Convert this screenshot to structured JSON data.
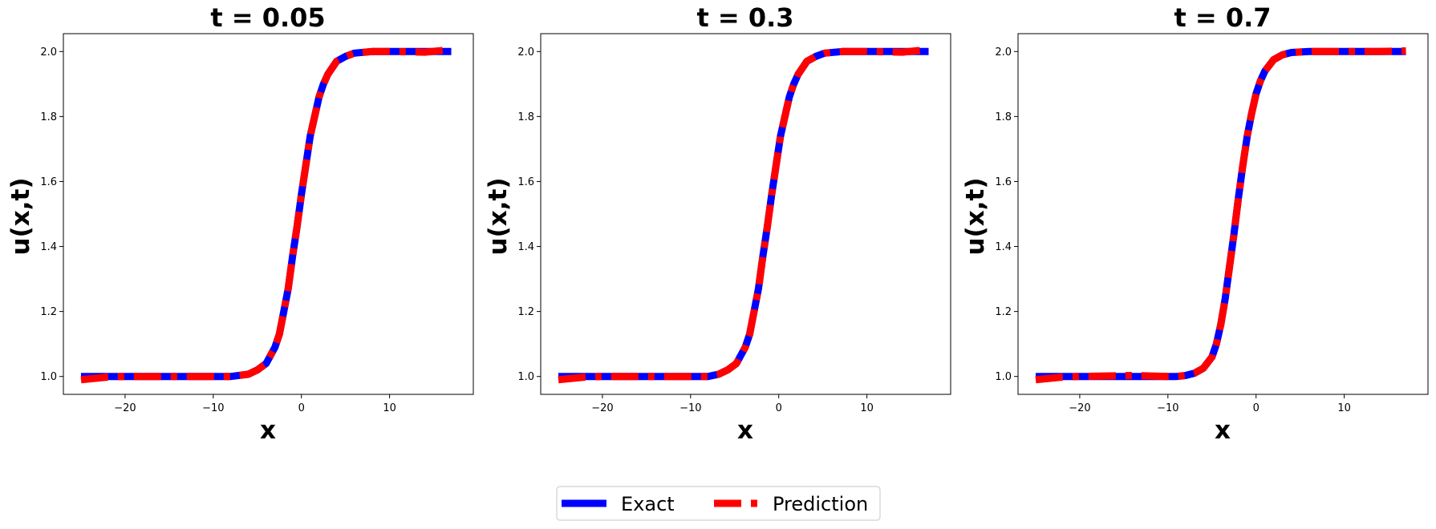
{
  "chart_data": [
    {
      "type": "line",
      "title": "t = 0.05",
      "xlabel": "x",
      "ylabel": "u(x,t)",
      "xlim": [
        -27,
        19.5
      ],
      "ylim": [
        0.945,
        2.055
      ],
      "xticks": [
        -20,
        -10,
        0,
        10
      ],
      "xtick_labels": [
        "−20",
        "−10",
        "0",
        "10"
      ],
      "yticks": [
        1.0,
        1.2,
        1.4,
        1.6,
        1.8,
        2.0
      ],
      "ytick_labels": [
        "1.0",
        "1.2",
        "1.4",
        "1.6",
        "1.8",
        "2.0"
      ],
      "grid": false,
      "series": [
        {
          "name": "Exact",
          "color": "#0000ff",
          "style": "solid",
          "x": [
            -25,
            -20,
            -10,
            -8,
            -6,
            -5,
            -4,
            -3,
            -2.5,
            -2,
            -1.5,
            -1,
            -0.5,
            0,
            0.5,
            1,
            1.5,
            2,
            2.5,
            3,
            4,
            5,
            6,
            8,
            10,
            17
          ],
          "y": [
            1.0,
            1.0,
            1.0,
            1.0,
            1.007,
            1.02,
            1.04,
            1.09,
            1.13,
            1.2,
            1.27,
            1.37,
            1.46,
            1.56,
            1.65,
            1.74,
            1.8,
            1.86,
            1.9,
            1.93,
            1.97,
            1.985,
            1.995,
            2.0,
            2.0,
            2.0
          ]
        },
        {
          "name": "Prediction",
          "color": "#ff0000",
          "style": "dashed",
          "x": [
            -25,
            -22,
            -20,
            -10,
            -8,
            -6,
            -5,
            -4,
            -3,
            -2.5,
            -2,
            -1.5,
            -1,
            -0.5,
            0,
            0.5,
            1,
            1.5,
            2,
            2.5,
            3,
            4,
            5,
            6,
            8,
            10,
            14,
            17
          ],
          "y": [
            0.99,
            0.998,
            1.0,
            1.0,
            1.0,
            1.007,
            1.02,
            1.04,
            1.09,
            1.13,
            1.2,
            1.27,
            1.37,
            1.46,
            1.56,
            1.65,
            1.74,
            1.8,
            1.86,
            1.9,
            1.93,
            1.97,
            1.985,
            1.995,
            2.0,
            2.0,
            1.998,
            2.006
          ]
        }
      ]
    },
    {
      "type": "line",
      "title": "t = 0.3",
      "xlabel": "x",
      "ylabel": "u(x,t)",
      "xlim": [
        -27,
        19.5
      ],
      "ylim": [
        0.945,
        2.055
      ],
      "xticks": [
        -20,
        -10,
        0,
        10
      ],
      "xtick_labels": [
        "−20",
        "−10",
        "0",
        "10"
      ],
      "yticks": [
        1.0,
        1.2,
        1.4,
        1.6,
        1.8,
        2.0
      ],
      "ytick_labels": [
        "1.0",
        "1.2",
        "1.4",
        "1.6",
        "1.8",
        "2.0"
      ],
      "grid": false,
      "series": [
        {
          "name": "Exact",
          "color": "#0000ff",
          "style": "solid",
          "x": [
            -25,
            -20,
            -10,
            -8,
            -6.8,
            -5.8,
            -4.8,
            -3.8,
            -3.3,
            -2.8,
            -2.3,
            -1.8,
            -1.3,
            -0.8,
            -0.3,
            0.2,
            0.7,
            1.2,
            1.7,
            2.2,
            3.2,
            4.2,
            5.2,
            7.2,
            10,
            17
          ],
          "y": [
            1.0,
            1.0,
            1.0,
            1.0,
            1.007,
            1.02,
            1.04,
            1.09,
            1.13,
            1.2,
            1.27,
            1.37,
            1.46,
            1.56,
            1.65,
            1.74,
            1.8,
            1.86,
            1.9,
            1.93,
            1.97,
            1.985,
            1.995,
            2.0,
            2.0,
            2.0
          ]
        },
        {
          "name": "Prediction",
          "color": "#ff0000",
          "style": "dashed",
          "x": [
            -25,
            -22,
            -20,
            -10,
            -8,
            -6.8,
            -5.8,
            -4.8,
            -3.8,
            -3.3,
            -2.8,
            -2.3,
            -1.8,
            -1.3,
            -0.8,
            -0.3,
            0.2,
            0.7,
            1.2,
            1.7,
            2.2,
            3.2,
            4.2,
            5.2,
            7.2,
            10,
            14,
            17
          ],
          "y": [
            0.99,
            0.998,
            1.0,
            1.0,
            1.0,
            1.007,
            1.02,
            1.04,
            1.09,
            1.13,
            1.2,
            1.27,
            1.37,
            1.46,
            1.56,
            1.65,
            1.74,
            1.8,
            1.86,
            1.9,
            1.93,
            1.97,
            1.985,
            1.995,
            2.0,
            2.0,
            1.998,
            2.006
          ]
        }
      ]
    },
    {
      "type": "line",
      "title": "t = 0.7",
      "xlabel": "x",
      "ylabel": "u(x,t)",
      "xlim": [
        -27,
        19.5
      ],
      "ylim": [
        0.945,
        2.055
      ],
      "xticks": [
        -20,
        -10,
        0,
        10
      ],
      "xtick_labels": [
        "−20",
        "−10",
        "0",
        "10"
      ],
      "yticks": [
        1.0,
        1.2,
        1.4,
        1.6,
        1.8,
        2.0
      ],
      "ytick_labels": [
        "1.0",
        "1.2",
        "1.4",
        "1.6",
        "1.8",
        "2.0"
      ],
      "grid": false,
      "series": [
        {
          "name": "Exact",
          "color": "#0000ff",
          "style": "solid",
          "x": [
            -25,
            -20,
            -10,
            -9,
            -8,
            -7,
            -6,
            -5,
            -4.5,
            -4,
            -3.5,
            -3,
            -2.5,
            -2,
            -1.5,
            -1,
            -0.5,
            0,
            0.5,
            1,
            2,
            3,
            4,
            6,
            10,
            17
          ],
          "y": [
            1.0,
            1.0,
            1.0,
            1.0,
            1.003,
            1.01,
            1.025,
            1.06,
            1.1,
            1.16,
            1.24,
            1.34,
            1.44,
            1.55,
            1.65,
            1.74,
            1.81,
            1.87,
            1.91,
            1.94,
            1.975,
            1.99,
            1.997,
            2.0,
            2.0,
            2.0
          ]
        },
        {
          "name": "Prediction",
          "color": "#ff0000",
          "style": "dashed",
          "x": [
            -25,
            -22,
            -20,
            -14,
            -10,
            -9,
            -8,
            -7,
            -6,
            -5,
            -4.5,
            -4,
            -3.5,
            -3,
            -2.5,
            -2,
            -1.5,
            -1,
            -0.5,
            0,
            0.5,
            1,
            2,
            3,
            4,
            6,
            10,
            14,
            17
          ],
          "y": [
            0.99,
            0.998,
            1.0,
            1.003,
            1.0,
            1.0,
            1.003,
            1.01,
            1.025,
            1.06,
            1.1,
            1.16,
            1.24,
            1.34,
            1.44,
            1.55,
            1.65,
            1.74,
            1.81,
            1.87,
            1.91,
            1.94,
            1.975,
            1.99,
            1.997,
            2.0,
            2.0,
            2.0,
            2.002
          ]
        }
      ]
    }
  ],
  "legend": {
    "placement": "bottom-center",
    "entries": [
      {
        "label": "Exact",
        "color": "#0000ff",
        "style": "solid"
      },
      {
        "label": "Prediction",
        "color": "#ff0000",
        "style": "dashed"
      }
    ]
  }
}
